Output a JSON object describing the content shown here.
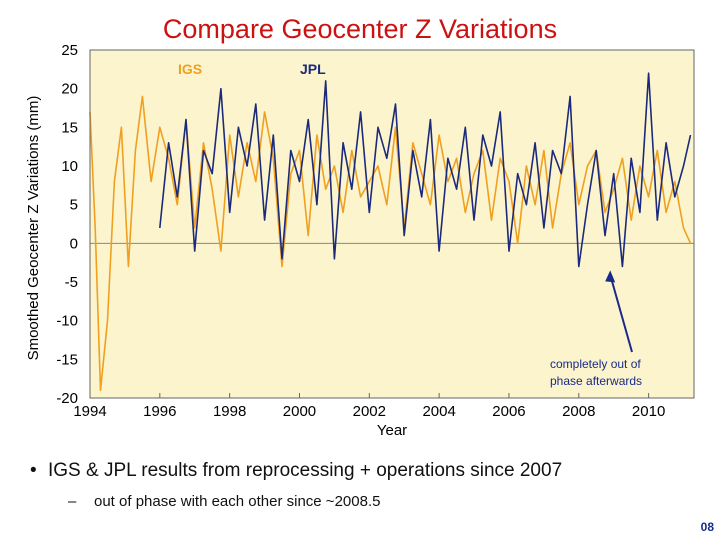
{
  "slide": {
    "title": "Compare Geocenter Z Variations",
    "bullet": "IGS & JPL results from reprocessing + operations since 2007",
    "subbullet": "out of phase with each other since ~2008.5",
    "slide_number": "08"
  },
  "colors": {
    "title": "#cc1111",
    "plot_bg": "#fbf4cd",
    "igs": "#f0a020",
    "jpl": "#1c2a7c",
    "annotation": "#1a2a8a"
  },
  "chart_data": {
    "type": "line",
    "title": "Compare Geocenter Z Variations",
    "xlabel": "Year",
    "ylabel": "Smoothed Geocenter Z Variations (mm)",
    "xlim": [
      1994,
      2011.3
    ],
    "ylim": [
      -20,
      25
    ],
    "xticks": [
      1994,
      1996,
      1998,
      2000,
      2002,
      2004,
      2006,
      2008,
      2010
    ],
    "yticks": [
      25,
      20,
      15,
      10,
      5,
      0,
      -5,
      -10,
      -15,
      -20
    ],
    "legend": [
      "IGS",
      "JPL"
    ],
    "legend_position": "top-left",
    "annotation": {
      "line1": "completely out of",
      "line2": "phase afterwards",
      "points_to_x": 2008.9,
      "points_to_y": -3.5
    },
    "series": [
      {
        "name": "IGS",
        "x": [
          1994.0,
          1994.15,
          1994.3,
          1994.5,
          1994.7,
          1994.9,
          1995.1,
          1995.3,
          1995.5,
          1995.75,
          1996.0,
          1996.25,
          1996.5,
          1996.75,
          1997.0,
          1997.25,
          1997.5,
          1997.75,
          1998.0,
          1998.25,
          1998.5,
          1998.75,
          1999.0,
          1999.25,
          1999.5,
          1999.75,
          2000.0,
          2000.25,
          2000.5,
          2000.75,
          2001.0,
          2001.25,
          2001.5,
          2001.75,
          2002.0,
          2002.25,
          2002.5,
          2002.75,
          2003.0,
          2003.25,
          2003.5,
          2003.75,
          2004.0,
          2004.25,
          2004.5,
          2004.75,
          2005.0,
          2005.25,
          2005.5,
          2005.75,
          2006.0,
          2006.25,
          2006.5,
          2006.75,
          2007.0,
          2007.25,
          2007.5,
          2007.75,
          2008.0,
          2008.25,
          2008.5,
          2008.75,
          2009.0,
          2009.25,
          2009.5,
          2009.75,
          2010.0,
          2010.25,
          2010.5,
          2010.75,
          2011.0,
          2011.2
        ],
        "values": [
          17,
          2,
          -19,
          -10,
          8,
          15,
          -3,
          12,
          19,
          8,
          15,
          11,
          5,
          16,
          2,
          13,
          7,
          -1,
          14,
          6,
          13,
          8,
          17,
          11,
          -3,
          9,
          12,
          1,
          14,
          7,
          10,
          4,
          12,
          6,
          8,
          10,
          5,
          15,
          2,
          13,
          9,
          5,
          14,
          8,
          11,
          4,
          9,
          12,
          3,
          11,
          8,
          0,
          10,
          5,
          12,
          2,
          9,
          13,
          5,
          10,
          12,
          4,
          7,
          11,
          3,
          10,
          6,
          12,
          4,
          8,
          2,
          0
        ]
      },
      {
        "name": "JPL",
        "x": [
          1996.0,
          1996.25,
          1996.5,
          1996.75,
          1997.0,
          1997.25,
          1997.5,
          1997.75,
          1998.0,
          1998.25,
          1998.5,
          1998.75,
          1999.0,
          1999.25,
          1999.5,
          1999.75,
          2000.0,
          2000.25,
          2000.5,
          2000.75,
          2001.0,
          2001.25,
          2001.5,
          2001.75,
          2002.0,
          2002.25,
          2002.5,
          2002.75,
          2003.0,
          2003.25,
          2003.5,
          2003.75,
          2004.0,
          2004.25,
          2004.5,
          2004.75,
          2005.0,
          2005.25,
          2005.5,
          2005.75,
          2006.0,
          2006.25,
          2006.5,
          2006.75,
          2007.0,
          2007.25,
          2007.5,
          2007.75,
          2008.0,
          2008.25,
          2008.5,
          2008.75,
          2009.0,
          2009.25,
          2009.5,
          2009.75,
          2010.0,
          2010.25,
          2010.5,
          2010.75,
          2011.0,
          2011.2
        ],
        "values": [
          2,
          13,
          6,
          16,
          -1,
          12,
          9,
          20,
          4,
          15,
          10,
          18,
          3,
          14,
          -2,
          12,
          8,
          16,
          5,
          21,
          -2,
          13,
          7,
          17,
          4,
          15,
          11,
          18,
          1,
          12,
          6,
          16,
          -1,
          11,
          7,
          15,
          3,
          14,
          10,
          17,
          -1,
          9,
          5,
          13,
          2,
          12,
          9,
          19,
          -3,
          5,
          12,
          1,
          9,
          -3,
          11,
          4,
          22,
          3,
          13,
          6,
          10,
          14
        ]
      }
    ]
  }
}
